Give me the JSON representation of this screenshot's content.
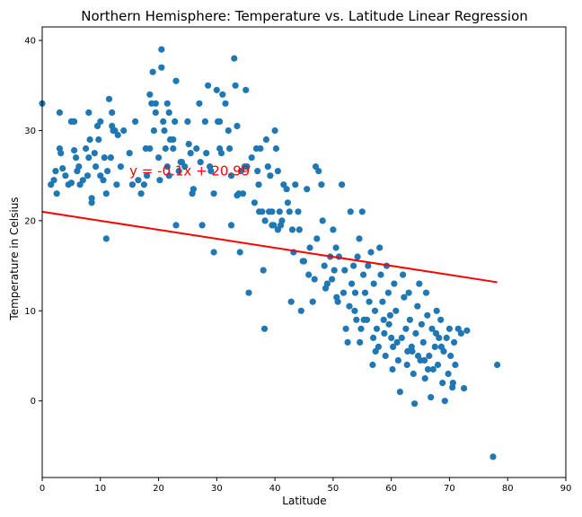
{
  "chart_data": {
    "type": "scatter",
    "title": "Northern Hemisphere: Temperature vs. Latitude Linear Regression",
    "xlabel": "Latitude",
    "ylabel": "Temperature in Celsius",
    "xlim": [
      0,
      90
    ],
    "ylim": [
      -8.5,
      41.5
    ],
    "xticks": [
      0,
      10,
      20,
      30,
      40,
      50,
      60,
      70,
      80,
      90
    ],
    "yticks": [
      0,
      10,
      20,
      30,
      40
    ],
    "grid": false,
    "point_color": "#1f77b4",
    "line_color": "#ff0000",
    "annotation": {
      "text": "y = -0.1x + 20.99",
      "x": 15,
      "y": 25,
      "color": "#ff0000"
    },
    "regression": {
      "slope": -0.1,
      "intercept": 20.99,
      "x_range": [
        0,
        78.2
      ]
    },
    "points": [
      [
        0.0,
        33.0
      ],
      [
        1.5,
        24.0
      ],
      [
        2.0,
        24.5
      ],
      [
        2.3,
        25.5
      ],
      [
        2.5,
        23.0
      ],
      [
        3.0,
        32.0
      ],
      [
        3.0,
        28.0
      ],
      [
        3.2,
        27.5
      ],
      [
        3.5,
        25.8
      ],
      [
        4.0,
        25.0
      ],
      [
        4.5,
        24.0
      ],
      [
        5.0,
        24.2
      ],
      [
        5.0,
        31.0
      ],
      [
        5.5,
        27.8
      ],
      [
        5.8,
        27.0
      ],
      [
        6.0,
        25.5
      ],
      [
        6.3,
        26.0
      ],
      [
        6.5,
        24.0
      ],
      [
        7.0,
        24.5
      ],
      [
        7.5,
        28.0
      ],
      [
        7.8,
        25.0
      ],
      [
        8.0,
        27.0
      ],
      [
        8.0,
        32.0
      ],
      [
        8.2,
        29.0
      ],
      [
        8.5,
        22.0
      ],
      [
        8.5,
        22.5
      ],
      [
        9.0,
        27.5
      ],
      [
        9.2,
        26.0
      ],
      [
        9.5,
        30.5
      ],
      [
        9.7,
        29.0
      ],
      [
        10.0,
        31.0
      ],
      [
        10.0,
        25.0
      ],
      [
        10.5,
        24.5
      ],
      [
        10.7,
        27.0
      ],
      [
        11.0,
        23.0
      ],
      [
        11.0,
        18.0
      ],
      [
        11.2,
        25.5
      ],
      [
        11.5,
        33.5
      ],
      [
        11.8,
        27.0
      ],
      [
        12.0,
        32.0
      ],
      [
        12.2,
        30.0
      ],
      [
        12.5,
        30.0
      ],
      [
        12.8,
        24.0
      ],
      [
        13.0,
        29.5
      ],
      [
        13.5,
        26.0
      ],
      [
        14.0,
        30.0
      ],
      [
        15.0,
        27.5
      ],
      [
        15.5,
        24.0
      ],
      [
        16.0,
        31.0
      ],
      [
        16.5,
        24.5
      ],
      [
        17.0,
        23.0
      ],
      [
        17.5,
        24.0
      ],
      [
        17.8,
        28.0
      ],
      [
        18.0,
        25.0
      ],
      [
        18.5,
        28.0
      ],
      [
        18.5,
        34.0
      ],
      [
        18.8,
        33.0
      ],
      [
        19.0,
        36.5
      ],
      [
        19.2,
        30.0
      ],
      [
        19.5,
        32.0
      ],
      [
        20.0,
        27.0
      ],
      [
        20.2,
        24.5
      ],
      [
        20.5,
        39.0
      ],
      [
        20.5,
        37.0
      ],
      [
        20.8,
        31.0
      ],
      [
        21.0,
        30.0
      ],
      [
        21.2,
        28.0
      ],
      [
        21.5,
        33.0
      ],
      [
        21.5,
        26.0
      ],
      [
        21.8,
        25.0
      ],
      [
        22.0,
        29.0
      ],
      [
        22.5,
        28.0
      ],
      [
        22.5,
        29.0
      ],
      [
        22.8,
        31.0
      ],
      [
        23.0,
        35.5
      ],
      [
        23.0,
        19.5
      ],
      [
        23.5,
        25.5
      ],
      [
        23.8,
        26.5
      ],
      [
        24.0,
        26.5
      ],
      [
        24.5,
        26.0
      ],
      [
        25.0,
        31.0
      ],
      [
        25.2,
        28.5
      ],
      [
        25.5,
        27.5
      ],
      [
        25.8,
        23.0
      ],
      [
        26.0,
        23.5
      ],
      [
        26.5,
        28.0
      ],
      [
        27.0,
        33.0
      ],
      [
        27.2,
        26.5
      ],
      [
        27.5,
        19.5
      ],
      [
        28.0,
        31.0
      ],
      [
        28.2,
        27.5
      ],
      [
        28.5,
        35.0
      ],
      [
        28.8,
        26.0
      ],
      [
        29.0,
        25.5
      ],
      [
        29.5,
        23.0
      ],
      [
        29.5,
        16.5
      ],
      [
        30.0,
        34.5
      ],
      [
        30.2,
        31.0
      ],
      [
        30.5,
        28.0
      ],
      [
        30.8,
        27.5
      ],
      [
        31.0,
        34.0
      ],
      [
        31.5,
        33.0
      ],
      [
        32.0,
        30.0
      ],
      [
        32.2,
        28.0
      ],
      [
        32.5,
        25.0
      ],
      [
        32.5,
        19.5
      ],
      [
        33.0,
        38.0
      ],
      [
        33.2,
        35.0
      ],
      [
        33.5,
        30.5
      ],
      [
        33.8,
        23.0
      ],
      [
        34.0,
        16.5
      ],
      [
        34.2,
        25.5
      ],
      [
        34.5,
        23.0
      ],
      [
        35.0,
        34.5
      ],
      [
        35.2,
        26.0
      ],
      [
        35.5,
        12.0
      ],
      [
        36.0,
        27.0
      ],
      [
        36.5,
        22.0
      ],
      [
        37.0,
        25.5
      ],
      [
        37.2,
        24.0
      ],
      [
        37.5,
        28.0
      ],
      [
        37.8,
        21.0
      ],
      [
        38.0,
        14.5
      ],
      [
        38.2,
        8.0
      ],
      [
        38.5,
        29.0
      ],
      [
        38.8,
        26.0
      ],
      [
        39.0,
        21.0
      ],
      [
        39.2,
        25.0
      ],
      [
        39.5,
        21.0
      ],
      [
        39.8,
        19.5
      ],
      [
        40.0,
        30.0
      ],
      [
        40.2,
        28.0
      ],
      [
        40.5,
        25.5
      ],
      [
        40.8,
        21.0
      ],
      [
        41.0,
        19.5
      ],
      [
        41.5,
        24.0
      ],
      [
        42.0,
        23.5
      ],
      [
        42.2,
        22.0
      ],
      [
        42.5,
        21.0
      ],
      [
        42.8,
        11.0
      ],
      [
        43.0,
        19.0
      ],
      [
        43.5,
        24.0
      ],
      [
        44.0,
        21.0
      ],
      [
        44.2,
        19.0
      ],
      [
        44.5,
        10.0
      ],
      [
        45.0,
        15.5
      ],
      [
        45.5,
        23.5
      ],
      [
        46.0,
        17.0
      ],
      [
        46.5,
        11.0
      ],
      [
        47.0,
        26.0
      ],
      [
        47.5,
        25.5
      ],
      [
        48.0,
        24.0
      ],
      [
        48.2,
        20.0
      ],
      [
        48.5,
        15.0
      ],
      [
        49.0,
        13.0
      ],
      [
        49.5,
        16.0
      ],
      [
        50.0,
        19.0
      ],
      [
        50.2,
        14.5
      ],
      [
        50.5,
        17.0
      ],
      [
        50.8,
        11.0
      ],
      [
        51.0,
        16.0
      ],
      [
        51.5,
        24.0
      ],
      [
        52.0,
        14.5
      ],
      [
        52.2,
        8.0
      ],
      [
        52.5,
        6.5
      ],
      [
        53.0,
        21.0
      ],
      [
        53.2,
        13.0
      ],
      [
        53.5,
        15.0
      ],
      [
        53.8,
        12.0
      ],
      [
        54.0,
        9.0
      ],
      [
        54.2,
        16.0
      ],
      [
        54.5,
        18.0
      ],
      [
        54.8,
        8.0
      ],
      [
        55.0,
        21.0
      ],
      [
        55.2,
        14.0
      ],
      [
        55.5,
        12.0
      ],
      [
        55.8,
        9.0
      ],
      [
        56.0,
        15.0
      ],
      [
        56.2,
        11.0
      ],
      [
        56.5,
        16.5
      ],
      [
        56.8,
        4.0
      ],
      [
        57.0,
        13.0
      ],
      [
        57.2,
        10.0
      ],
      [
        57.5,
        8.0
      ],
      [
        57.8,
        6.0
      ],
      [
        58.0,
        17.0
      ],
      [
        58.2,
        14.0
      ],
      [
        58.5,
        11.0
      ],
      [
        58.8,
        7.5
      ],
      [
        59.0,
        5.0
      ],
      [
        59.2,
        15.0
      ],
      [
        59.5,
        12.0
      ],
      [
        59.8,
        9.5
      ],
      [
        60.0,
        7.0
      ],
      [
        60.2,
        3.5
      ],
      [
        60.5,
        13.0
      ],
      [
        60.8,
        10.0
      ],
      [
        61.0,
        6.5
      ],
      [
        61.2,
        4.5
      ],
      [
        61.5,
        1.0
      ],
      [
        62.0,
        14.0
      ],
      [
        62.2,
        11.5
      ],
      [
        62.5,
        8.0
      ],
      [
        62.8,
        5.5
      ],
      [
        63.0,
        12.0
      ],
      [
        63.2,
        9.0
      ],
      [
        63.5,
        6.0
      ],
      [
        63.8,
        3.0
      ],
      [
        64.0,
        -0.3
      ],
      [
        64.2,
        7.5
      ],
      [
        64.5,
        10.5
      ],
      [
        64.8,
        13.0
      ],
      [
        65.0,
        4.5
      ],
      [
        65.2,
        8.5
      ],
      [
        65.5,
        6.5
      ],
      [
        65.8,
        2.5
      ],
      [
        66.0,
        12.0
      ],
      [
        66.2,
        9.5
      ],
      [
        66.5,
        5.0
      ],
      [
        66.8,
        0.4
      ],
      [
        67.0,
        8.0
      ],
      [
        67.2,
        3.5
      ],
      [
        67.5,
        6.0
      ],
      [
        67.8,
        10.0
      ],
      [
        68.0,
        4.0
      ],
      [
        68.2,
        7.0
      ],
      [
        68.5,
        9.0
      ],
      [
        68.8,
        2.0
      ],
      [
        69.0,
        5.5
      ],
      [
        69.2,
        0.0
      ],
      [
        69.5,
        7.0
      ],
      [
        69.8,
        3.0
      ],
      [
        70.0,
        8.0
      ],
      [
        70.2,
        5.0
      ],
      [
        70.5,
        1.5
      ],
      [
        70.8,
        6.5
      ],
      [
        71.0,
        4.0
      ],
      [
        71.5,
        8.0
      ],
      [
        72.0,
        7.5
      ],
      [
        72.5,
        1.4
      ],
      [
        73.0,
        7.8
      ],
      [
        77.5,
        -6.2
      ],
      [
        78.2,
        4.0
      ],
      [
        5.5,
        31.0
      ],
      [
        12.0,
        30.5
      ],
      [
        19.5,
        33.0
      ],
      [
        21.8,
        32.0
      ],
      [
        30.5,
        31.0
      ],
      [
        33.5,
        22.8
      ],
      [
        34.8,
        26.0
      ],
      [
        36.8,
        28.0
      ],
      [
        39.5,
        19.5
      ],
      [
        41.2,
        20.0
      ],
      [
        43.2,
        16.5
      ],
      [
        45.8,
        14.0
      ],
      [
        47.2,
        18.0
      ],
      [
        49.8,
        13.5
      ],
      [
        51.8,
        12.0
      ],
      [
        53.7,
        10.0
      ],
      [
        55.3,
        9.0
      ],
      [
        56.9,
        7.0
      ],
      [
        58.7,
        9.0
      ],
      [
        60.3,
        6.0
      ],
      [
        62.7,
        4.0
      ],
      [
        64.6,
        5.0
      ],
      [
        66.3,
        3.5
      ],
      [
        68.6,
        6.0
      ],
      [
        70.6,
        2.0
      ],
      [
        37.3,
        21.0
      ],
      [
        38.3,
        20.0
      ],
      [
        40.5,
        19.0
      ],
      [
        44.8,
        15.5
      ],
      [
        46.8,
        13.5
      ],
      [
        48.7,
        12.5
      ],
      [
        50.6,
        11.5
      ],
      [
        52.8,
        10.5
      ],
      [
        54.6,
        6.5
      ],
      [
        57.3,
        5.5
      ],
      [
        59.6,
        8.5
      ],
      [
        61.8,
        7.0
      ],
      [
        63.6,
        5.5
      ],
      [
        65.7,
        4.5
      ],
      [
        67.7,
        7.5
      ]
    ]
  }
}
